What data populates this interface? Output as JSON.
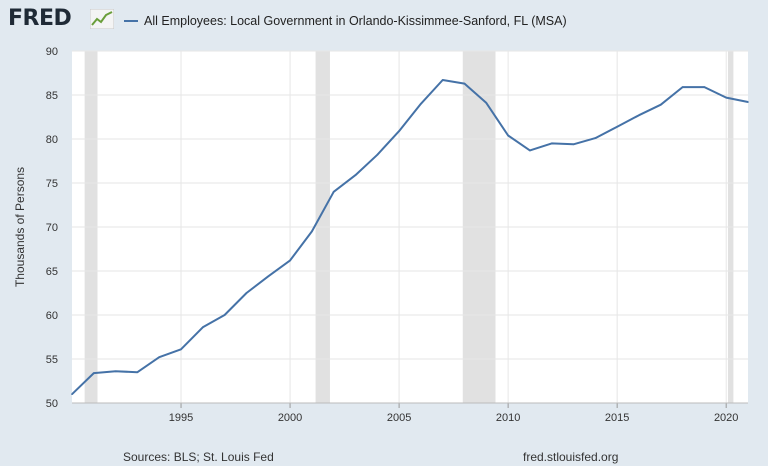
{
  "header": {
    "logo_text": "FRED",
    "logo_icon": "line-graph-icon"
  },
  "footer": {
    "sources": "Sources: BLS; St. Louis Fed",
    "site": "fred.stlouisfed.org"
  },
  "colors": {
    "series": "#4572a7",
    "recession": "#e1e1e1",
    "grid": "#e6e6e6",
    "background": "#e1e9f0",
    "plot_bg": "#ffffff"
  },
  "chart_data": {
    "type": "line",
    "title": "",
    "xlabel": "",
    "ylabel": "Thousands of Persons",
    "xlim": [
      1990,
      2021
    ],
    "ylim": [
      50,
      90
    ],
    "yticks": [
      50,
      55,
      60,
      65,
      70,
      75,
      80,
      85,
      90
    ],
    "xticks": [
      1995,
      2000,
      2005,
      2010,
      2015,
      2020
    ],
    "grid": true,
    "legend_position": "top-left",
    "recessions": [
      [
        1990.58,
        1991.17
      ],
      [
        2001.17,
        2001.83
      ],
      [
        2007.92,
        2009.42
      ],
      [
        2020.08,
        2020.33
      ]
    ],
    "series": [
      {
        "name": "All Employees: Local Government in Orlando-Kissimmee-Sanford, FL (MSA)",
        "x": [
          1990,
          1991,
          1992,
          1993,
          1994,
          1995,
          1996,
          1997,
          1998,
          1999,
          2000,
          2001,
          2002,
          2003,
          2004,
          2005,
          2006,
          2007,
          2008,
          2009,
          2010,
          2011,
          2012,
          2013,
          2014,
          2015,
          2016,
          2017,
          2018,
          2019,
          2020,
          2021
        ],
        "y": [
          51.0,
          53.4,
          53.6,
          53.5,
          55.2,
          56.1,
          58.6,
          60.0,
          62.5,
          64.4,
          66.2,
          69.5,
          74.0,
          75.9,
          78.2,
          80.9,
          84.0,
          86.7,
          86.3,
          84.1,
          80.4,
          78.7,
          79.5,
          79.4,
          80.1,
          81.4,
          82.7,
          83.9,
          85.9,
          85.9,
          84.7,
          84.2
        ]
      }
    ]
  }
}
